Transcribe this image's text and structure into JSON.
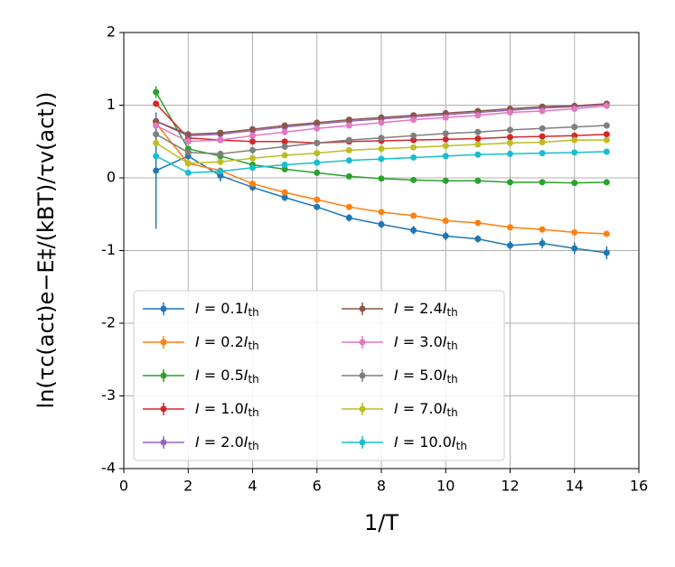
{
  "chart_data": {
    "type": "line",
    "xlabel": "1/T",
    "ylabel": "ln(τc(act)e−E‡/(kBT)/τv(act))",
    "xlim": [
      0,
      16
    ],
    "xticks": [
      0,
      2,
      4,
      6,
      8,
      10,
      12,
      14,
      16
    ],
    "ylim": [
      -4,
      2
    ],
    "yticks": [
      -4,
      -3,
      -2,
      -1,
      0,
      1,
      2
    ],
    "grid": true,
    "legend": "lower left",
    "x": [
      1,
      2,
      3,
      4,
      5,
      6,
      7,
      8,
      9,
      10,
      11,
      12,
      13,
      14,
      15
    ],
    "series": [
      {
        "name": "I = 0.1Ith",
        "color": "#1f77b4",
        "values": [
          0.1,
          0.3,
          0.03,
          -0.13,
          -0.27,
          -0.4,
          -0.55,
          -0.64,
          -0.72,
          -0.8,
          -0.84,
          -0.93,
          -0.9,
          -0.97,
          -1.03
        ],
        "errors": [
          0.8,
          0.05,
          0.08,
          0.05,
          0.05,
          0.04,
          0.05,
          0.05,
          0.06,
          0.06,
          0.05,
          0.06,
          0.07,
          0.08,
          0.09
        ]
      },
      {
        "name": "I = 0.2Ith",
        "color": "#ff7f0e",
        "values": [
          0.75,
          0.2,
          0.1,
          -0.08,
          -0.2,
          -0.3,
          -0.4,
          -0.47,
          -0.52,
          -0.59,
          -0.62,
          -0.68,
          -0.71,
          -0.75,
          -0.77
        ]
      },
      {
        "name": "I = 0.5Ith",
        "color": "#2ca02c",
        "values": [
          1.18,
          0.4,
          0.3,
          0.18,
          0.12,
          0.07,
          0.02,
          -0.01,
          -0.03,
          -0.04,
          -0.04,
          -0.06,
          -0.06,
          -0.07,
          -0.06
        ],
        "errors": [
          0.08,
          0.03,
          0.02,
          0.02,
          0.02,
          0.02,
          0.02,
          0.02,
          0.02,
          0.02,
          0.02,
          0.02,
          0.02,
          0.02,
          0.02
        ]
      },
      {
        "name": "I = 1.0Ith",
        "color": "#d62728",
        "values": [
          1.02,
          0.55,
          0.52,
          0.5,
          0.5,
          0.48,
          0.5,
          0.51,
          0.52,
          0.53,
          0.54,
          0.56,
          0.57,
          0.58,
          0.6
        ]
      },
      {
        "name": "I = 2.0Ith",
        "color": "#9467bd",
        "values": [
          0.78,
          0.58,
          0.6,
          0.65,
          0.7,
          0.74,
          0.78,
          0.81,
          0.84,
          0.87,
          0.9,
          0.93,
          0.96,
          0.98,
          1.01
        ]
      },
      {
        "name": "I = 2.4Ith",
        "color": "#8c564b",
        "values": [
          0.78,
          0.6,
          0.62,
          0.67,
          0.72,
          0.76,
          0.8,
          0.83,
          0.86,
          0.89,
          0.92,
          0.95,
          0.98,
          0.99,
          1.02
        ]
      },
      {
        "name": "I = 3.0Ith",
        "color": "#e377c2",
        "values": [
          0.72,
          0.5,
          0.52,
          0.58,
          0.63,
          0.68,
          0.72,
          0.76,
          0.8,
          0.83,
          0.86,
          0.9,
          0.92,
          0.95,
          0.99
        ]
      },
      {
        "name": "I = 5.0Ith",
        "color": "#7f7f7f",
        "values": [
          0.6,
          0.35,
          0.33,
          0.38,
          0.43,
          0.48,
          0.52,
          0.55,
          0.58,
          0.61,
          0.63,
          0.66,
          0.68,
          0.7,
          0.72
        ]
      },
      {
        "name": "I = 7.0Ith",
        "color": "#bcbd22",
        "values": [
          0.48,
          0.2,
          0.22,
          0.27,
          0.31,
          0.34,
          0.38,
          0.4,
          0.42,
          0.44,
          0.46,
          0.48,
          0.49,
          0.52,
          0.52
        ]
      },
      {
        "name": "I = 10.0Ith",
        "color": "#17becf",
        "values": [
          0.3,
          0.07,
          0.09,
          0.14,
          0.18,
          0.21,
          0.24,
          0.26,
          0.28,
          0.3,
          0.32,
          0.33,
          0.34,
          0.35,
          0.36
        ]
      }
    ]
  }
}
